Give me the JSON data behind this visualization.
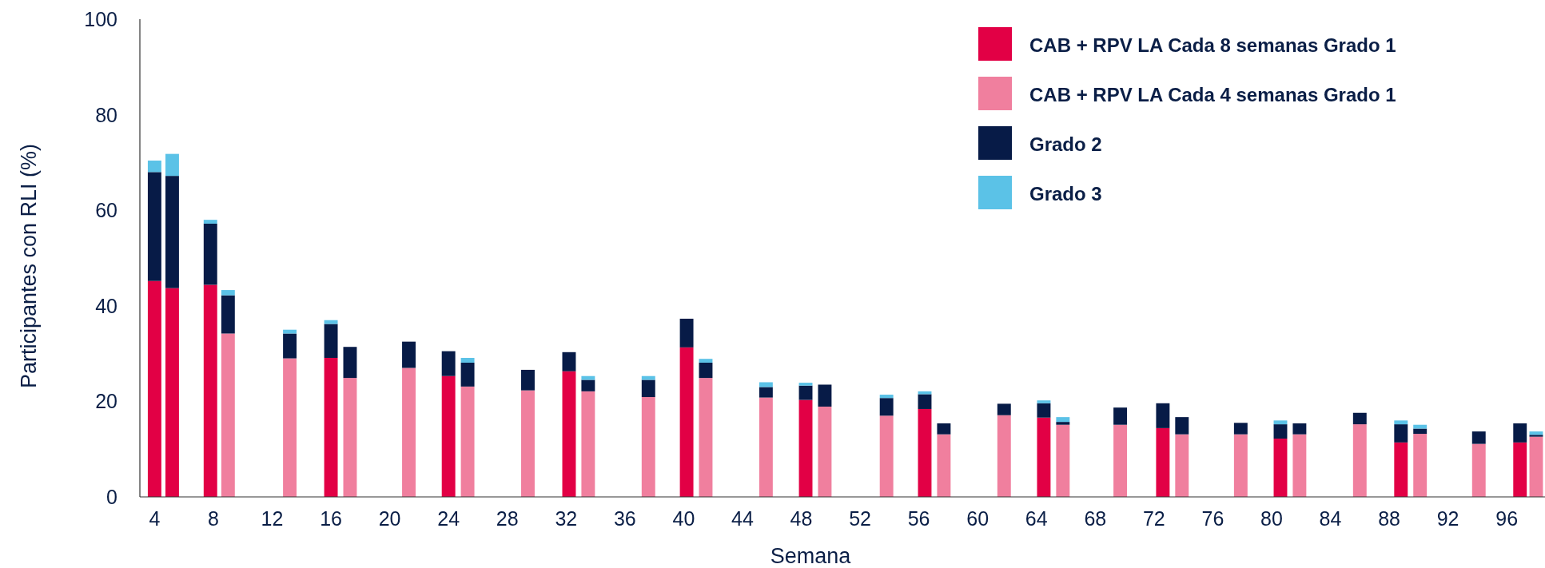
{
  "chart_data": {
    "type": "bar",
    "stacked": true,
    "xlabel": "Semana",
    "ylabel": "Participantes con RLI (%)",
    "xlim": [
      3,
      98.6
    ],
    "xticks": [
      4,
      8,
      12,
      16,
      20,
      24,
      28,
      32,
      36,
      40,
      44,
      48,
      52,
      56,
      60,
      64,
      68,
      72,
      76,
      80,
      84,
      88,
      92,
      96
    ],
    "ylim": [
      0,
      100
    ],
    "yticks": [
      0,
      20,
      40,
      60,
      80,
      100
    ],
    "grid": false,
    "legend": "top right",
    "x": [
      4.0,
      5.2,
      7.8,
      9.0,
      13.2,
      16.0,
      17.3,
      21.3,
      24.0,
      25.3,
      29.4,
      32.2,
      33.5,
      37.6,
      40.2,
      41.5,
      45.6,
      48.3,
      49.6,
      53.8,
      56.4,
      57.7,
      61.8,
      64.5,
      65.8,
      69.7,
      72.6,
      73.9,
      77.9,
      80.6,
      81.9,
      86.0,
      88.8,
      90.1,
      94.1,
      96.9,
      98.0
    ],
    "series": [
      {
        "name": "CAB + RPV LA Cada 8 semanas Grado 1",
        "color": "#e20045",
        "values": [
          45.2,
          43.7,
          44.4,
          null,
          null,
          29.1,
          null,
          null,
          25.3,
          null,
          null,
          26.3,
          null,
          null,
          31.3,
          null,
          null,
          20.3,
          null,
          null,
          18.4,
          null,
          null,
          16.6,
          null,
          null,
          14.4,
          null,
          null,
          12.2,
          null,
          null,
          11.4,
          null,
          null,
          11.4,
          null
        ]
      },
      {
        "name": "CAB + RPV LA Cada 4 semanas Grado 1",
        "color": "#f07f9e",
        "values": [
          null,
          null,
          null,
          34.2,
          29.0,
          null,
          24.9,
          27.0,
          null,
          23.1,
          22.3,
          null,
          22.1,
          20.9,
          null,
          24.9,
          20.8,
          null,
          18.9,
          17.0,
          null,
          13.1,
          17.1,
          null,
          15.1,
          15.1,
          null,
          13.1,
          13.1,
          null,
          13.1,
          15.2,
          null,
          13.2,
          11.1,
          null,
          12.6
        ]
      },
      {
        "name": "Grado 2",
        "color": "#071b47",
        "values": [
          22.8,
          23.5,
          12.8,
          8.0,
          5.2,
          7.1,
          6.5,
          5.5,
          5.2,
          5.0,
          4.3,
          4.0,
          2.4,
          3.6,
          6.0,
          3.2,
          2.2,
          3.0,
          4.6,
          3.7,
          3.1,
          2.3,
          2.4,
          3.0,
          0.6,
          3.6,
          5.2,
          3.6,
          2.4,
          3.0,
          2.3,
          2.4,
          3.8,
          1.1,
          2.6,
          4.0,
          0.4
        ]
      },
      {
        "name": "Grado 3",
        "color": "#5bc2e7",
        "values": [
          2.4,
          4.6,
          0.8,
          1.1,
          0.8,
          0.8,
          null,
          null,
          null,
          1.0,
          null,
          null,
          0.8,
          0.8,
          null,
          0.8,
          1.0,
          0.6,
          null,
          0.7,
          0.6,
          null,
          null,
          0.6,
          1.0,
          null,
          null,
          null,
          null,
          0.8,
          null,
          null,
          0.8,
          0.8,
          null,
          null,
          0.7
        ]
      }
    ]
  }
}
